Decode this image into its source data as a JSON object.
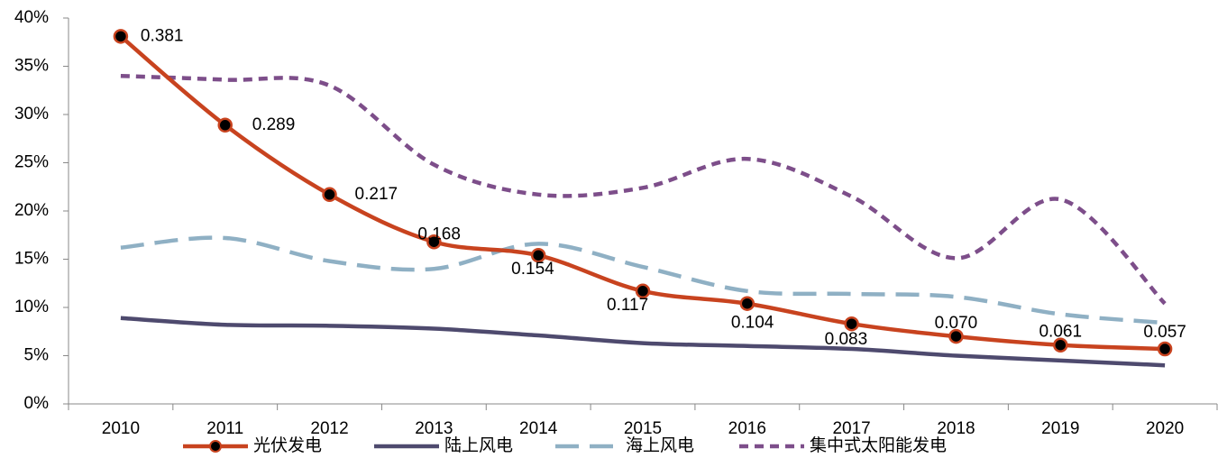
{
  "chart_data": {
    "type": "line",
    "categories": [
      "2010",
      "2011",
      "2012",
      "2013",
      "2014",
      "2015",
      "2016",
      "2017",
      "2018",
      "2019",
      "2020"
    ],
    "series": [
      {
        "name": "光伏发电",
        "color": "#c8431f",
        "line_style": "solid",
        "marker": "circle",
        "values": [
          38.1,
          28.9,
          21.7,
          16.8,
          15.4,
          11.7,
          10.4,
          8.3,
          7.0,
          6.1,
          5.7
        ],
        "value_labels": [
          "0.381",
          "0.289",
          "0.217",
          "0.168",
          "0.154",
          "0.117",
          "0.104",
          "0.083",
          "0.070",
          "0.061",
          "0.057"
        ]
      },
      {
        "name": "陆上风电",
        "color": "#4e4a6e",
        "line_style": "solid",
        "values": [
          8.9,
          8.2,
          8.1,
          7.8,
          7.1,
          6.3,
          6.0,
          5.7,
          5.0,
          4.5,
          4.0
        ]
      },
      {
        "name": "海上风电",
        "color": "#8fb0c4",
        "line_style": "dashed",
        "values": [
          16.2,
          17.2,
          14.8,
          14.0,
          16.6,
          14.2,
          11.7,
          11.4,
          11.1,
          9.3,
          8.4
        ]
      },
      {
        "name": "集中式太阳能发电",
        "color": "#7d4e8a",
        "line_style": "dotted",
        "values": [
          34.0,
          33.6,
          33.0,
          24.8,
          21.7,
          22.4,
          25.4,
          21.5,
          15.1,
          21.2,
          10.4
        ]
      }
    ],
    "ylim": [
      0,
      40
    ],
    "yticks": [
      {
        "value": 0,
        "label": "0%"
      },
      {
        "value": 5,
        "label": "5%"
      },
      {
        "value": 10,
        "label": "10%"
      },
      {
        "value": 15,
        "label": "15%"
      },
      {
        "value": 20,
        "label": "20%"
      },
      {
        "value": 25,
        "label": "25%"
      },
      {
        "value": 30,
        "label": "30%"
      },
      {
        "value": 35,
        "label": "35%"
      },
      {
        "value": 40,
        "label": "40%"
      }
    ],
    "legend": "bottom"
  }
}
